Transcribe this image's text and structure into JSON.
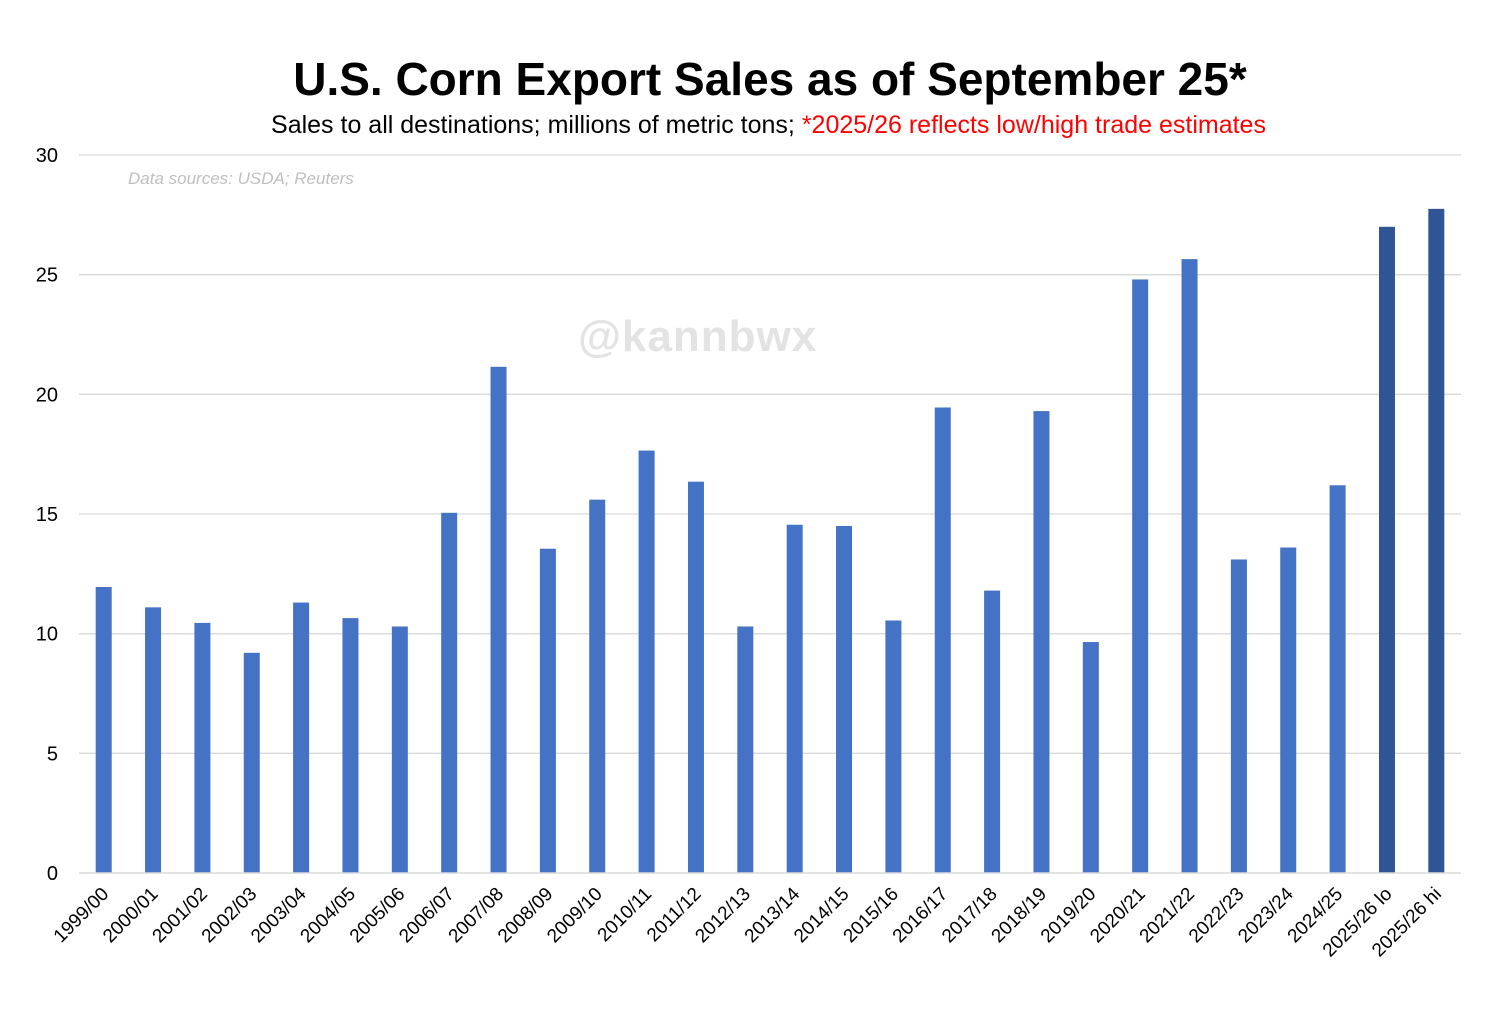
{
  "chart_data": {
    "type": "bar",
    "title": "U.S. Corn Export Sales as of September 25*",
    "subtitle_main": "Sales to all destinations; millions of metric tons;",
    "subtitle_highlight": "*2025/26 reflects low/high trade estimates",
    "source_note": "Data sources: USDA; Reuters",
    "watermark": "@kannbwx",
    "xlabel": "",
    "ylabel": "",
    "ylim": [
      0,
      30
    ],
    "yticks": [
      "0",
      "5",
      "10",
      "15",
      "20",
      "25",
      "30"
    ],
    "grid": true,
    "categories": [
      "1999/00",
      "2000/01",
      "2001/02",
      "2002/03",
      "2003/04",
      "2004/05",
      "2005/06",
      "2006/07",
      "2007/08",
      "2008/09",
      "2009/10",
      "2010/11",
      "2011/12",
      "2012/13",
      "2013/14",
      "2014/15",
      "2015/16",
      "2016/17",
      "2017/18",
      "2018/19",
      "2019/20",
      "2020/21",
      "2021/22",
      "2022/23",
      "2023/24",
      "2024/25",
      "2025/26 lo",
      "2025/26 hi"
    ],
    "values": [
      11.95,
      11.1,
      10.45,
      9.2,
      11.3,
      10.65,
      10.3,
      15.05,
      21.15,
      13.55,
      15.6,
      17.65,
      16.35,
      10.3,
      14.55,
      14.5,
      10.55,
      19.45,
      11.8,
      19.3,
      9.65,
      24.8,
      25.65,
      13.1,
      13.6,
      16.2,
      27.0,
      27.75
    ],
    "colors": {
      "bar": "#4472c4",
      "bar_estimate": "#2f5597",
      "grid": "#d9d9d9",
      "axis_text": "#000000"
    }
  }
}
